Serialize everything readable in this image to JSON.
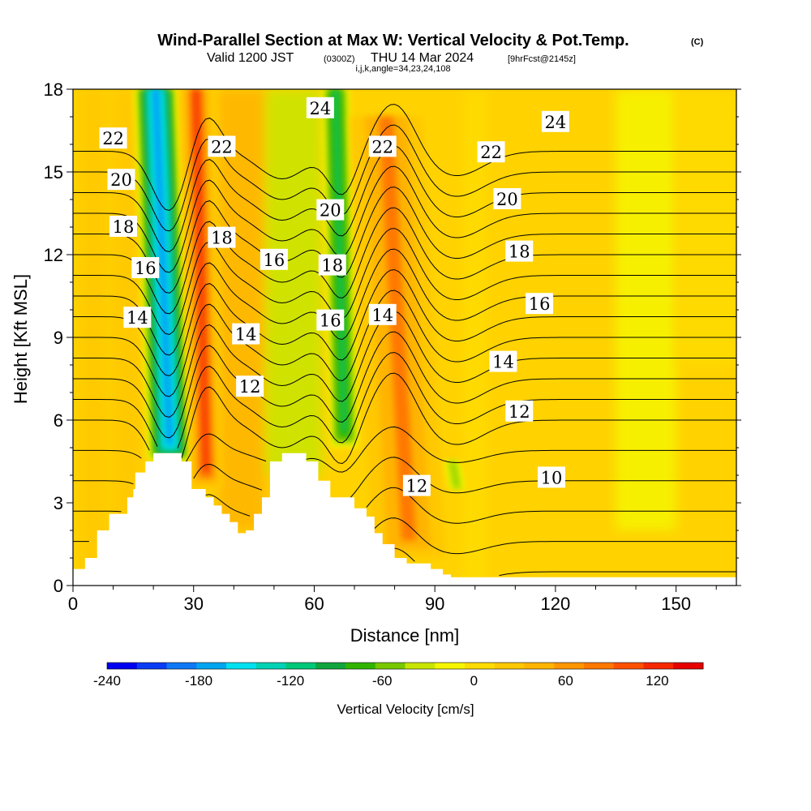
{
  "header": {
    "title_main": "Wind-Parallel Section at Max W: Vertical Velocity & Pot.Temp.",
    "title_mark": "(C)",
    "subtitle_valid": "Valid 1200 JST",
    "subtitle_utc": "(0300Z)",
    "subtitle_date": "THU 14 Mar 2024",
    "subtitle_fcst": "[9hrFcst@2145z]",
    "subtitle_indices": "i,j,k,angle=34,23,24,108"
  },
  "chart_data": {
    "type": "heatmap",
    "title": "Wind-Parallel Section at Max W: Vertical Velocity & Pot.Temp.",
    "xlabel": "Distance [nm]",
    "ylabel": "Height [Kft MSL]",
    "xlim": [
      0,
      165
    ],
    "ylim": [
      0,
      18
    ],
    "x_ticks": [
      "0",
      "30",
      "60",
      "90",
      "120",
      "150"
    ],
    "y_ticks": [
      "0",
      "3",
      "6",
      "9",
      "12",
      "15",
      "18"
    ],
    "colorbar": {
      "label": "Vertical Velocity [cm/s]",
      "tick_labels": [
        "-240",
        "-180",
        "-120",
        "-60",
        "0",
        "60",
        "120"
      ],
      "min": -240,
      "max": 150,
      "step": 20,
      "colors": [
        "#0000f0",
        "#0a3cf5",
        "#0f78f5",
        "#00a5f0",
        "#00e1f0",
        "#00d2b4",
        "#00c878",
        "#10a53c",
        "#30b400",
        "#78c800",
        "#c8e600",
        "#f5f500",
        "#ffdc00",
        "#ffc800",
        "#ffb400",
        "#ff9600",
        "#ff7800",
        "#ff5000",
        "#f52800",
        "#e60000",
        "#c80014",
        "#a00046",
        "#780078",
        "#50008c"
      ]
    },
    "vertical_velocity_cells": [
      {
        "x": [
          17,
          28
        ],
        "y": [
          4.5,
          18
        ],
        "value": -190,
        "note": "downdraft core"
      },
      {
        "x": [
          28,
          36
        ],
        "y": [
          3.5,
          18
        ],
        "value": 130,
        "note": "updraft core"
      },
      {
        "x": [
          63,
          70
        ],
        "y": [
          5,
          18
        ],
        "value": -110,
        "note": "downdraft"
      },
      {
        "x": [
          72,
          90
        ],
        "y": [
          1,
          17
        ],
        "value": 80,
        "note": "updraft"
      },
      {
        "x": [
          93,
          97
        ],
        "y": [
          3.5,
          4.5
        ],
        "value": -60,
        "note": "weak downdraft"
      }
    ],
    "potential_temperature_contours": {
      "label_values": [
        10,
        12,
        14,
        16,
        18,
        20,
        22,
        24
      ],
      "interval": 1,
      "labels_shown": [
        {
          "text": "22",
          "x": 10,
          "y": 16.2
        },
        {
          "text": "20",
          "x": 12,
          "y": 14.7
        },
        {
          "text": "18",
          "x": 12.5,
          "y": 13.0
        },
        {
          "text": "16",
          "x": 18,
          "y": 11.5
        },
        {
          "text": "14",
          "x": 16,
          "y": 9.7
        },
        {
          "text": "22",
          "x": 37,
          "y": 15.9
        },
        {
          "text": "18",
          "x": 37,
          "y": 12.6
        },
        {
          "text": "16",
          "x": 50,
          "y": 11.8
        },
        {
          "text": "14",
          "x": 43,
          "y": 9.1
        },
        {
          "text": "12",
          "x": 44,
          "y": 7.2
        },
        {
          "text": "24",
          "x": 61.5,
          "y": 17.3
        },
        {
          "text": "20",
          "x": 64,
          "y": 13.6
        },
        {
          "text": "18",
          "x": 64.5,
          "y": 11.6
        },
        {
          "text": "16",
          "x": 64,
          "y": 9.6
        },
        {
          "text": "22",
          "x": 77,
          "y": 15.9
        },
        {
          "text": "14",
          "x": 77,
          "y": 9.8
        },
        {
          "text": "12",
          "x": 85.5,
          "y": 3.6
        },
        {
          "text": "22",
          "x": 104,
          "y": 15.7
        },
        {
          "text": "20",
          "x": 108,
          "y": 14.0
        },
        {
          "text": "18",
          "x": 111,
          "y": 12.1
        },
        {
          "text": "16",
          "x": 116,
          "y": 10.2
        },
        {
          "text": "14",
          "x": 107,
          "y": 8.1
        },
        {
          "text": "12",
          "x": 111,
          "y": 6.3
        },
        {
          "text": "24",
          "x": 120,
          "y": 16.8
        },
        {
          "text": "10",
          "x": 119,
          "y": 3.9
        }
      ]
    },
    "terrain_kft": [
      {
        "x": 0,
        "h": 0.6
      },
      {
        "x": 3,
        "h": 1.0
      },
      {
        "x": 6,
        "h": 2.0
      },
      {
        "x": 9,
        "h": 2.6
      },
      {
        "x": 12,
        "h": 2.6
      },
      {
        "x": 13.5,
        "h": 3.2
      },
      {
        "x": 15,
        "h": 3.5
      },
      {
        "x": 15.5,
        "h": 4.1
      },
      {
        "x": 18,
        "h": 4.5
      },
      {
        "x": 20,
        "h": 4.8
      },
      {
        "x": 26,
        "h": 4.8
      },
      {
        "x": 27,
        "h": 4.5
      },
      {
        "x": 29.5,
        "h": 3.5
      },
      {
        "x": 33,
        "h": 3.2
      },
      {
        "x": 35,
        "h": 2.9
      },
      {
        "x": 37,
        "h": 2.6
      },
      {
        "x": 39,
        "h": 2.3
      },
      {
        "x": 41,
        "h": 1.9
      },
      {
        "x": 43,
        "h": 2.0
      },
      {
        "x": 45,
        "h": 2.6
      },
      {
        "x": 47,
        "h": 3.2
      },
      {
        "x": 49,
        "h": 4.5
      },
      {
        "x": 52,
        "h": 4.8
      },
      {
        "x": 56,
        "h": 4.8
      },
      {
        "x": 58,
        "h": 4.5
      },
      {
        "x": 61,
        "h": 3.8
      },
      {
        "x": 64,
        "h": 3.2
      },
      {
        "x": 68,
        "h": 3.2
      },
      {
        "x": 70,
        "h": 2.8
      },
      {
        "x": 73,
        "h": 2.5
      },
      {
        "x": 75,
        "h": 1.9
      },
      {
        "x": 77,
        "h": 1.5
      },
      {
        "x": 80,
        "h": 1.0
      },
      {
        "x": 83,
        "h": 0.8
      },
      {
        "x": 86,
        "h": 0.8
      },
      {
        "x": 89,
        "h": 0.6
      },
      {
        "x": 92,
        "h": 0.4
      },
      {
        "x": 94,
        "h": 0.3
      },
      {
        "x": 100,
        "h": 0.3
      },
      {
        "x": 165,
        "h": 0.3
      }
    ]
  }
}
